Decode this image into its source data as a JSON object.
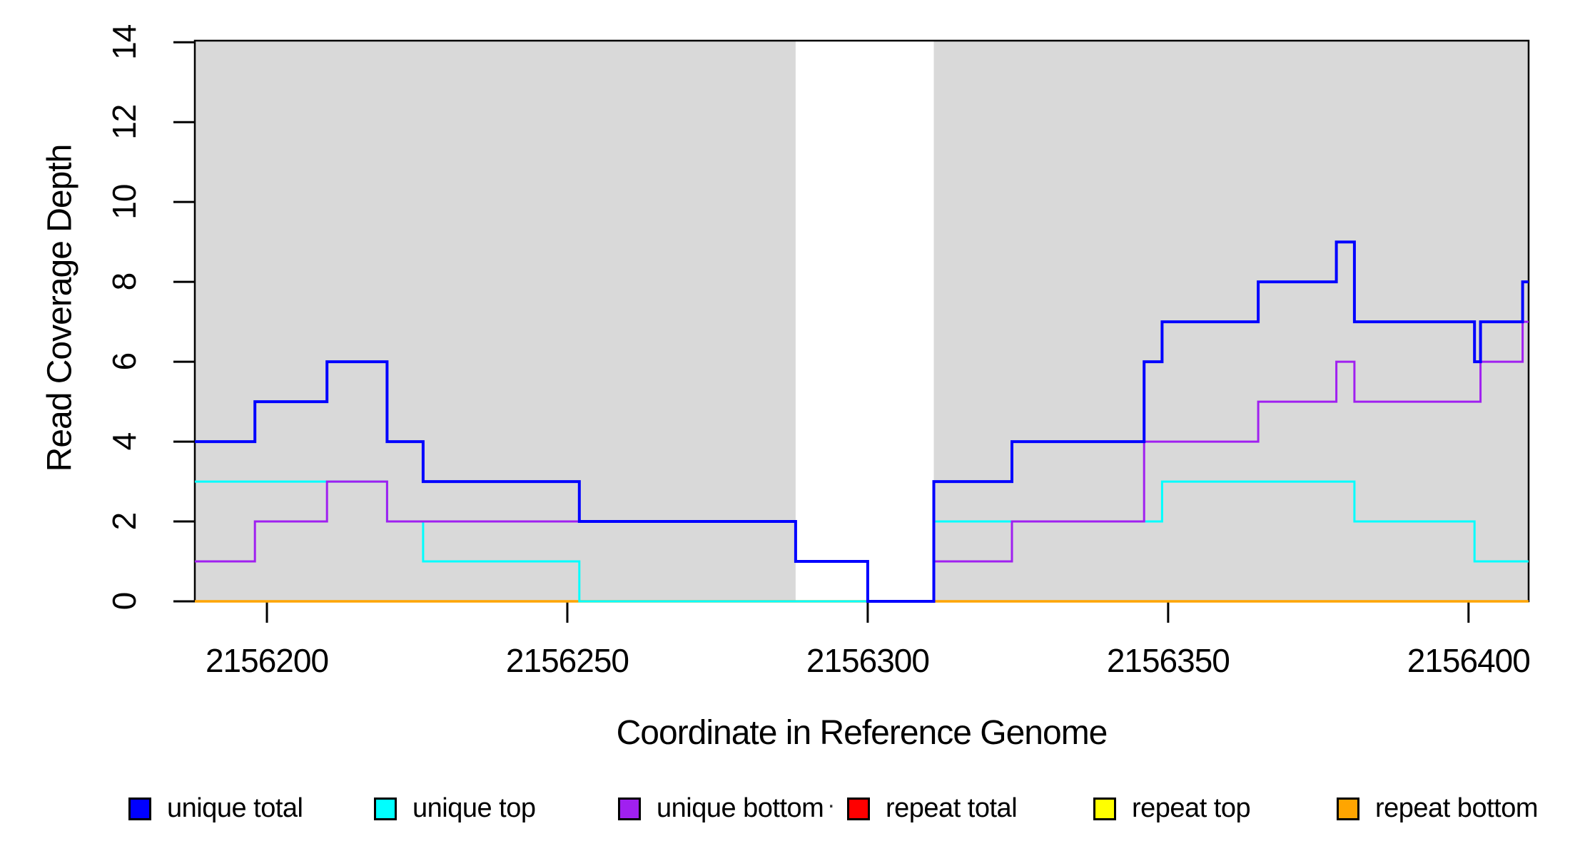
{
  "chart_data": {
    "type": "line",
    "subtype": "step-after-coverage-plot",
    "title": "",
    "xlabel": "Coordinate in Reference Genome",
    "ylabel": "Read Coverage Depth",
    "legend_title": ".",
    "x_range": [
      2156188,
      2156410
    ],
    "y_range": [
      0,
      14.04
    ],
    "x_ticks": [
      2156200,
      2156250,
      2156300,
      2156350,
      2156400
    ],
    "y_ticks": [
      0,
      2,
      4,
      6,
      8,
      10,
      12,
      14
    ],
    "grid": false,
    "background_color": "#ffffff",
    "shaded_regions": [
      {
        "name": "unique-mappability-left",
        "from": 2156188,
        "to": 2156288,
        "color": "#d9d9d9"
      },
      {
        "name": "unique-mappability-right",
        "from": 2156311,
        "to": 2156410,
        "color": "#d9d9d9"
      }
    ],
    "series": [
      {
        "key": "repeat-total",
        "name": "repeat total",
        "color": "#ff0000",
        "line_width": 3,
        "steps": [
          [
            2156188,
            0
          ]
        ],
        "x_end": 2156410
      },
      {
        "key": "repeat-top",
        "name": "repeat top",
        "color": "#ffff00",
        "line_width": 3,
        "steps": [
          [
            2156188,
            0
          ]
        ],
        "x_end": 2156410
      },
      {
        "key": "repeat-bottom",
        "name": "repeat bottom",
        "color": "#ffa500",
        "line_width": 3.5,
        "steps": [
          [
            2156188,
            0
          ]
        ],
        "x_end": 2156410
      },
      {
        "key": "unique-top",
        "name": "unique top",
        "color": "#00ffff",
        "line_width": 3,
        "steps": [
          [
            2156188,
            3
          ],
          [
            2156220,
            2
          ],
          [
            2156226,
            1
          ],
          [
            2156252,
            0
          ],
          [
            2156311,
            2
          ],
          [
            2156349,
            3
          ],
          [
            2156381,
            2
          ],
          [
            2156401,
            1
          ]
        ],
        "x_end": 2156410
      },
      {
        "key": "unique-bottom",
        "name": "unique bottom",
        "color": "#a020f0",
        "line_width": 3,
        "steps": [
          [
            2156188,
            1
          ],
          [
            2156198,
            2
          ],
          [
            2156210,
            3
          ],
          [
            2156220,
            2
          ],
          [
            2156288,
            1
          ],
          [
            2156300,
            0
          ],
          [
            2156311,
            1
          ],
          [
            2156324,
            2
          ],
          [
            2156346,
            4
          ],
          [
            2156365,
            5
          ],
          [
            2156378,
            6
          ],
          [
            2156381,
            5
          ],
          [
            2156402,
            6
          ],
          [
            2156409,
            7
          ]
        ],
        "x_end": 2156410
      },
      {
        "key": "unique-total",
        "name": "unique total",
        "color": "#0000ff",
        "line_width": 4,
        "steps": [
          [
            2156188,
            4
          ],
          [
            2156198,
            5
          ],
          [
            2156210,
            6
          ],
          [
            2156220,
            4
          ],
          [
            2156226,
            3
          ],
          [
            2156252,
            2
          ],
          [
            2156288,
            1
          ],
          [
            2156300,
            0
          ],
          [
            2156311,
            3
          ],
          [
            2156324,
            4
          ],
          [
            2156346,
            6
          ],
          [
            2156349,
            7
          ],
          [
            2156365,
            8
          ],
          [
            2156378,
            9
          ],
          [
            2156381,
            7
          ],
          [
            2156401,
            6
          ],
          [
            2156402,
            7
          ],
          [
            2156409,
            8
          ]
        ],
        "x_end": 2156410
      }
    ],
    "legend": [
      {
        "key": "unique-total",
        "label": "unique total",
        "color": "#0000ff"
      },
      {
        "key": "unique-top",
        "label": "unique top",
        "color": "#00ffff"
      },
      {
        "key": "unique-bottom",
        "label": "unique bottom",
        "color": "#a020f0"
      },
      {
        "key": "repeat-total",
        "label": "repeat total",
        "color": "#ff0000"
      },
      {
        "key": "repeat-top",
        "label": "repeat top",
        "color": "#ffff00"
      },
      {
        "key": "repeat-bottom",
        "label": "repeat bottom",
        "color": "#ffa500"
      }
    ],
    "legend_position": "bottom",
    "axis_color": "#000000"
  }
}
